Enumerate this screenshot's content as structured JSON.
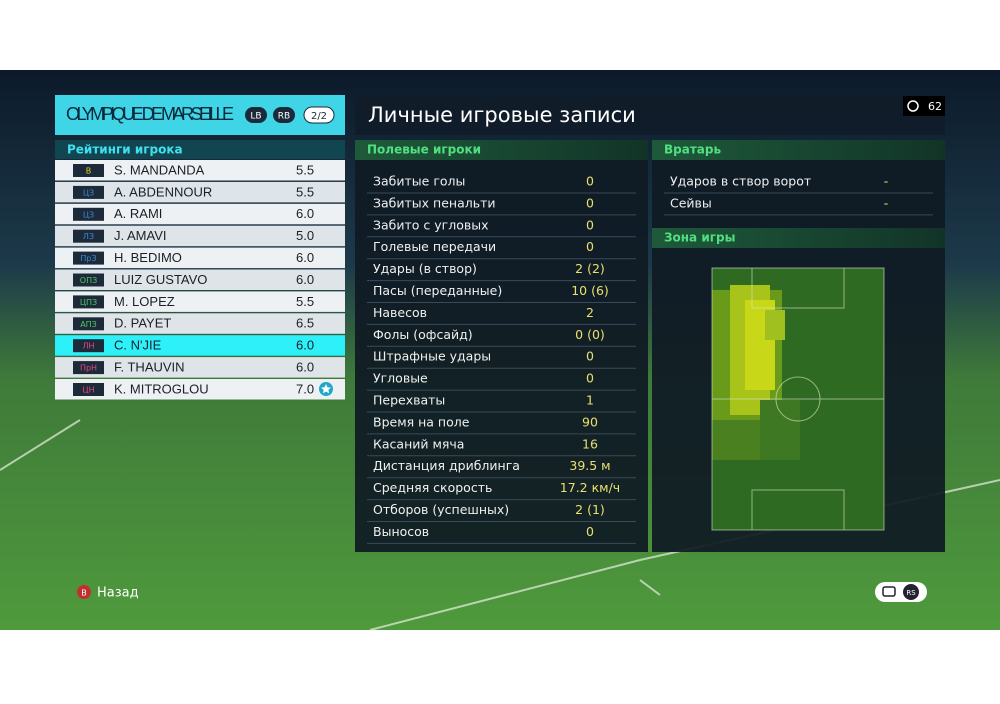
{
  "team": {
    "name": "OLYMPIQUE DE MARSEILLE",
    "buttons": [
      "LB",
      "RB"
    ],
    "page": "2/2"
  },
  "ratings": {
    "title": "Рейтинги игрока",
    "selected_index": 8,
    "players": [
      {
        "position": "В",
        "name": "S. MANDANDA",
        "rating": "5.5",
        "color": "#e8d020"
      },
      {
        "position": "ЦЗ",
        "name": "A. ABDENNOUR",
        "rating": "5.5",
        "color": "#3a8ad8"
      },
      {
        "position": "ЦЗ",
        "name": "A. RAMI",
        "rating": "6.0",
        "color": "#3a8ad8"
      },
      {
        "position": "ЛЗ",
        "name": "J. AMAVI",
        "rating": "5.0",
        "color": "#3a8ad8"
      },
      {
        "position": "ПрЗ",
        "name": "H. BEDIMO",
        "rating": "6.0",
        "color": "#3a8ad8"
      },
      {
        "position": "ОПЗ",
        "name": "LUIZ GUSTAVO",
        "rating": "6.0",
        "color": "#4cc860"
      },
      {
        "position": "ЦПЗ",
        "name": "M. LOPEZ",
        "rating": "5.5",
        "color": "#4cc860"
      },
      {
        "position": "АПЗ",
        "name": "D. PAYET",
        "rating": "6.5",
        "color": "#4cc860"
      },
      {
        "position": "ЛН",
        "name": "C. N'JIE",
        "rating": "6.0",
        "color": "#e84880"
      },
      {
        "position": "ПрН",
        "name": "F. THAUVIN",
        "rating": "6.0",
        "color": "#e84880"
      },
      {
        "position": "ЦН",
        "name": "K. MITROGLOU",
        "rating": "7.0",
        "color": "#e84880",
        "starred": true
      }
    ]
  },
  "timer": "62",
  "records": {
    "title": "Личные игровые записи",
    "field": {
      "title": "Полевые игроки",
      "rows": [
        [
          "Забитые голы",
          "0"
        ],
        [
          "Забитых пенальти",
          "0"
        ],
        [
          "Забито с угловых",
          "0"
        ],
        [
          "Голевые передачи",
          "0"
        ],
        [
          "Удары (в створ)",
          "2 (2)"
        ],
        [
          "Пасы (переданные)",
          "10 (6)"
        ],
        [
          "Навесов",
          "2"
        ],
        [
          "Фолы (офсайд)",
          "0 (0)"
        ],
        [
          "Штрафные удары",
          "0"
        ],
        [
          "Угловые",
          "0"
        ],
        [
          "Перехваты",
          "1"
        ],
        [
          "Время на поле",
          "90"
        ],
        [
          "Касаний мяча",
          "16"
        ],
        [
          "Дистанция дриблинга",
          "39.5 м"
        ],
        [
          "Средняя скорость",
          "17.2 км/ч"
        ],
        [
          "Отборов (успешных)",
          "2 (1)"
        ],
        [
          "Выносов",
          "0"
        ]
      ]
    },
    "goalkeeper": {
      "title": "Вратарь",
      "rows": [
        [
          "Ударов в створ ворот",
          "-"
        ],
        [
          "Сейвы",
          "-"
        ]
      ]
    },
    "zone": {
      "title": "Зона игры"
    }
  },
  "footer": {
    "back_button": "B",
    "back": "Назад",
    "stick": "RS"
  }
}
